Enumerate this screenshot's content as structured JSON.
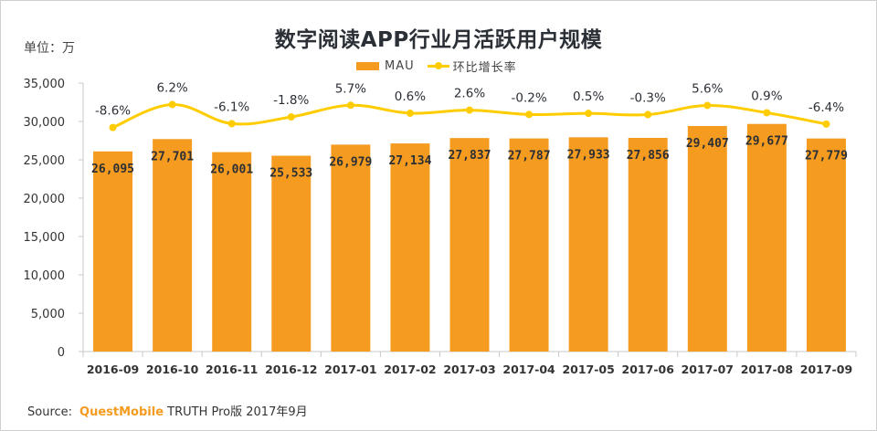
{
  "chart_data": {
    "type": "bar",
    "title": "数字阅读APP行业月活跃用户规模",
    "unit_label": "单位：万",
    "xlabel": "",
    "ylabel": "",
    "ylim": [
      0,
      35000
    ],
    "yticks": [
      0,
      5000,
      10000,
      15000,
      20000,
      25000,
      30000,
      35000
    ],
    "ytick_labels": [
      "0",
      "5,000",
      "10,000",
      "15,000",
      "20,000",
      "25,000",
      "30,000",
      "35,000"
    ],
    "grid": false,
    "legend_position": "top-center",
    "categories": [
      "2016-09",
      "2016-10",
      "2016-11",
      "2016-12",
      "2017-01",
      "2017-02",
      "2017-03",
      "2017-04",
      "2017-05",
      "2017-06",
      "2017-07",
      "2017-08",
      "2017-09"
    ],
    "series": [
      {
        "name": "MAU",
        "type": "bar",
        "color": "#F59B1F",
        "values": [
          26095,
          27701,
          26001,
          25533,
          26979,
          27134,
          27837,
          27787,
          27933,
          27856,
          29407,
          29677,
          27779
        ],
        "labels": [
          "26,095",
          "27,701",
          "26,001",
          "25,533",
          "26,979",
          "27,134",
          "27,837",
          "27,787",
          "27,933",
          "27,856",
          "29,407",
          "29,677",
          "27,779"
        ]
      },
      {
        "name": "环比增长率",
        "type": "line",
        "axis": "secondary",
        "color": "#FFCC00",
        "values": [
          -8.6,
          6.2,
          -6.1,
          -1.8,
          5.7,
          0.6,
          2.6,
          -0.2,
          0.5,
          -0.3,
          5.6,
          0.9,
          -6.4
        ],
        "labels": [
          "-8.6%",
          "6.2%",
          "-6.1%",
          "-1.8%",
          "5.7%",
          "0.6%",
          "2.6%",
          "-0.2%",
          "0.5%",
          "-0.3%",
          "5.6%",
          "0.9%",
          "-6.4%"
        ]
      }
    ]
  },
  "source": {
    "prefix": "Source:",
    "brand": "QuestMobile",
    "suffix": "TRUTH Pro版 2017年9月"
  }
}
